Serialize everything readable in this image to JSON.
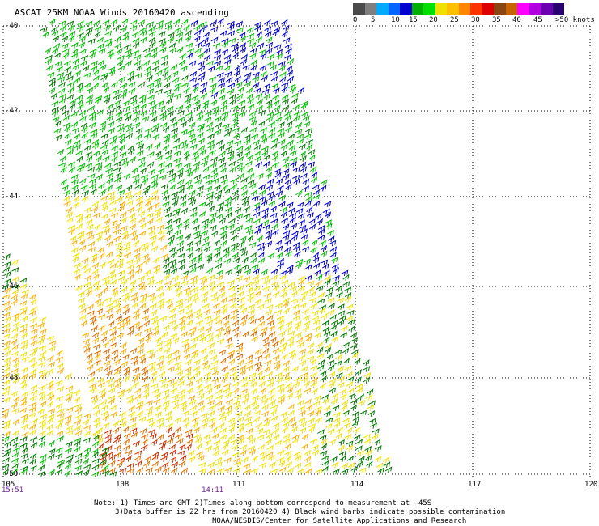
{
  "header": {
    "title": "ASCAT 25KM NOAA Winds 20160420 ascending"
  },
  "colorbar": {
    "colors": [
      "#4a4a4a",
      "#7f7f7f",
      "#00aaff",
      "#0066ff",
      "#0000d0",
      "#00b000",
      "#00e000",
      "#f0e000",
      "#ffc000",
      "#ff8800",
      "#ff3300",
      "#dd0000",
      "#8b4513",
      "#c86400",
      "#ff00ff",
      "#b000e0",
      "#6a00b0",
      "#2a0070"
    ],
    "labels": [
      "0",
      "5",
      "10",
      "15",
      "20",
      "25",
      "30",
      "35",
      "40",
      "45",
      ">50 knots"
    ]
  },
  "axes": {
    "lat_labels": [
      "-40",
      "-42",
      "-44",
      "-46",
      "-48",
      "-50"
    ],
    "lon_labels": [
      "105",
      "108",
      "111",
      "114",
      "117",
      "120"
    ],
    "time_labels": [
      "15:51",
      "14:11"
    ]
  },
  "notes": {
    "line1": "Note: 1) Times are GMT 2)Times along bottom correspond to measurement at -45S",
    "line2": "3)Data buffer is 22 hrs from 20160420 4) Black wind barbs indicate possible contamination",
    "line3": "NOAA/NESDIS/Center for Satellite Applications and Research"
  }
}
